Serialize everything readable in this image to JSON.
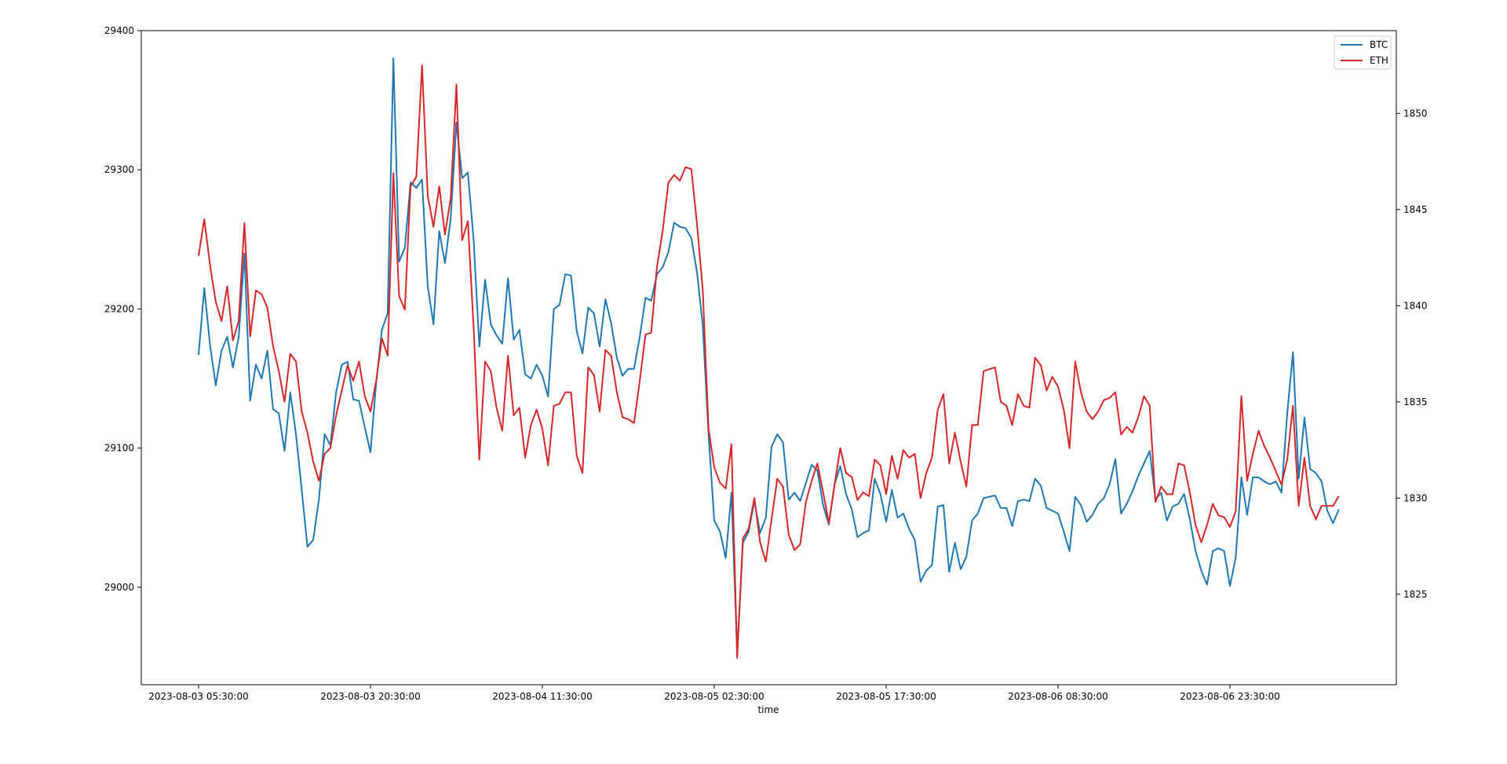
{
  "chart_data": {
    "type": "line",
    "title": "",
    "xlabel": "time",
    "x_tick_labels": [
      "2023-08-03 05:30:00",
      "2023-08-03 20:30:00",
      "2023-08-04 11:30:00",
      "2023-08-05 02:30:00",
      "2023-08-05 17:30:00",
      "2023-08-06 08:30:00",
      "2023-08-06 23:30:00"
    ],
    "x_start": "2023-08-03 05:30:00",
    "x_interval_minutes": 30,
    "y_left": {
      "ticks": [
        29000,
        29100,
        29200,
        29300,
        29400
      ],
      "range": [
        28930,
        29400
      ]
    },
    "y_right": {
      "ticks": [
        1825,
        1830,
        1835,
        1840,
        1845,
        1850
      ],
      "range": [
        1820.3,
        1854.3
      ]
    },
    "grid": false,
    "legend_position": "top-right",
    "series": [
      {
        "name": "BTC",
        "axis": "left",
        "color": "#1f77b4",
        "values": [
          29167,
          29215,
          29174,
          29145,
          29170,
          29180,
          29158,
          29180,
          29240,
          29134,
          29160,
          29150,
          29170,
          29128,
          29125,
          29098,
          29140,
          29110,
          29070,
          29029,
          29034,
          29063,
          29110,
          29102,
          29140,
          29160,
          29162,
          29135,
          29134,
          29115,
          29097,
          29147,
          29185,
          29197,
          29380,
          29234,
          29244,
          29291,
          29287,
          29293,
          29216,
          29189,
          29256,
          29233,
          29265,
          29334,
          29294,
          29298,
          29250,
          29173,
          29221,
          29189,
          29181,
          29175,
          29222,
          29178,
          29185,
          29153,
          29150,
          29160,
          29152,
          29137,
          29200,
          29203,
          29225,
          29224,
          29184,
          29168,
          29201,
          29197,
          29173,
          29207,
          29190,
          29165,
          29152,
          29157,
          29157,
          29180,
          29208,
          29206,
          29225,
          29230,
          29241,
          29262,
          29259,
          29258,
          29251,
          29226,
          29188,
          29110,
          29048,
          29040,
          29021,
          29068,
          28953,
          29032,
          29040,
          29062,
          29039,
          29050,
          29101,
          29110,
          29104,
          29063,
          29068,
          29062,
          29075,
          29088,
          29084,
          29059,
          29045,
          29074,
          29087,
          29067,
          29056,
          29036,
          29039,
          29041,
          29078,
          29067,
          29047,
          29070,
          29050,
          29053,
          29042,
          29034,
          29004,
          29012,
          29016,
          29058,
          29059,
          29011,
          29032,
          29013,
          29022,
          29048,
          29053,
          29064,
          29065,
          29066,
          29057,
          29057,
          29044,
          29062,
          29063,
          29062,
          29078,
          29073,
          29057,
          29055,
          29053,
          29040,
          29026,
          29065,
          29059,
          29047,
          29052,
          29060,
          29064,
          29074,
          29092,
          29053,
          29060,
          29069,
          29080,
          29089,
          29098,
          29063,
          29068,
          29048,
          29058,
          29060,
          29067,
          29049,
          29026,
          29012,
          29002,
          29026,
          29028,
          29026,
          29001,
          29021,
          29079,
          29052,
          29079,
          29079,
          29076,
          29074,
          29076,
          29068,
          29125,
          29169,
          29078,
          29122,
          29085,
          29082,
          29076,
          29055,
          29046,
          29056
        ]
      },
      {
        "name": "ETH",
        "axis": "right",
        "color": "#d62728",
        "values": [
          1842.6,
          1844.5,
          1842.1,
          1840.2,
          1839.2,
          1841.0,
          1838.2,
          1839.2,
          1844.3,
          1838.4,
          1840.8,
          1840.6,
          1839.9,
          1837.9,
          1836.6,
          1835.0,
          1837.5,
          1837.1,
          1834.5,
          1833.4,
          1831.9,
          1830.9,
          1832.3,
          1832.6,
          1834.3,
          1835.6,
          1836.9,
          1836.1,
          1837.1,
          1835.3,
          1834.5,
          1836.1,
          1838.3,
          1837.4,
          1846.9,
          1840.5,
          1839.8,
          1846.2,
          1846.7,
          1852.5,
          1845.7,
          1844.1,
          1846.2,
          1843.7,
          1845.6,
          1851.5,
          1843.4,
          1844.4,
          1838.9,
          1832.0,
          1837.1,
          1836.6,
          1834.7,
          1833.5,
          1837.4,
          1834.3,
          1834.7,
          1832.1,
          1833.8,
          1834.6,
          1833.6,
          1831.7,
          1834.8,
          1834.9,
          1835.5,
          1835.5,
          1832.2,
          1831.3,
          1836.8,
          1836.4,
          1834.5,
          1837.7,
          1837.4,
          1835.5,
          1834.2,
          1834.1,
          1833.9,
          1836.1,
          1838.5,
          1838.6,
          1842.0,
          1843.9,
          1846.4,
          1846.8,
          1846.5,
          1847.2,
          1847.1,
          1844.2,
          1840.8,
          1833.6,
          1831.6,
          1830.8,
          1830.5,
          1832.8,
          1821.7,
          1827.9,
          1828.4,
          1830.0,
          1827.7,
          1826.7,
          1828.9,
          1831.0,
          1830.6,
          1828.1,
          1827.3,
          1827.6,
          1829.8,
          1830.9,
          1831.8,
          1830.3,
          1828.7,
          1830.7,
          1832.6,
          1831.3,
          1831.1,
          1829.9,
          1830.3,
          1830.1,
          1832.0,
          1831.7,
          1830.2,
          1832.2,
          1831.0,
          1832.5,
          1832.1,
          1832.3,
          1830.0,
          1831.3,
          1832.1,
          1834.6,
          1835.4,
          1831.8,
          1833.4,
          1831.9,
          1830.6,
          1833.8,
          1833.8,
          1836.6,
          1836.7,
          1836.8,
          1835.0,
          1834.8,
          1833.8,
          1835.4,
          1834.8,
          1834.7,
          1837.3,
          1836.9,
          1835.6,
          1836.3,
          1835.8,
          1834.6,
          1832.6,
          1837.1,
          1835.5,
          1834.5,
          1834.1,
          1834.5,
          1835.1,
          1835.2,
          1835.5,
          1833.3,
          1833.7,
          1833.4,
          1834.2,
          1835.3,
          1834.8,
          1829.8,
          1830.6,
          1830.2,
          1830.2,
          1831.8,
          1831.7,
          1830.3,
          1828.6,
          1827.7,
          1828.6,
          1829.7,
          1829.1,
          1829.0,
          1828.5,
          1829.3,
          1835.3,
          1830.9,
          1832.3,
          1833.5,
          1832.7,
          1832.1,
          1831.4,
          1830.7,
          1832.0,
          1834.8,
          1829.6,
          1832.1,
          1829.6,
          1828.9,
          1829.6,
          1829.6,
          1829.6,
          1830.1
        ]
      }
    ]
  }
}
